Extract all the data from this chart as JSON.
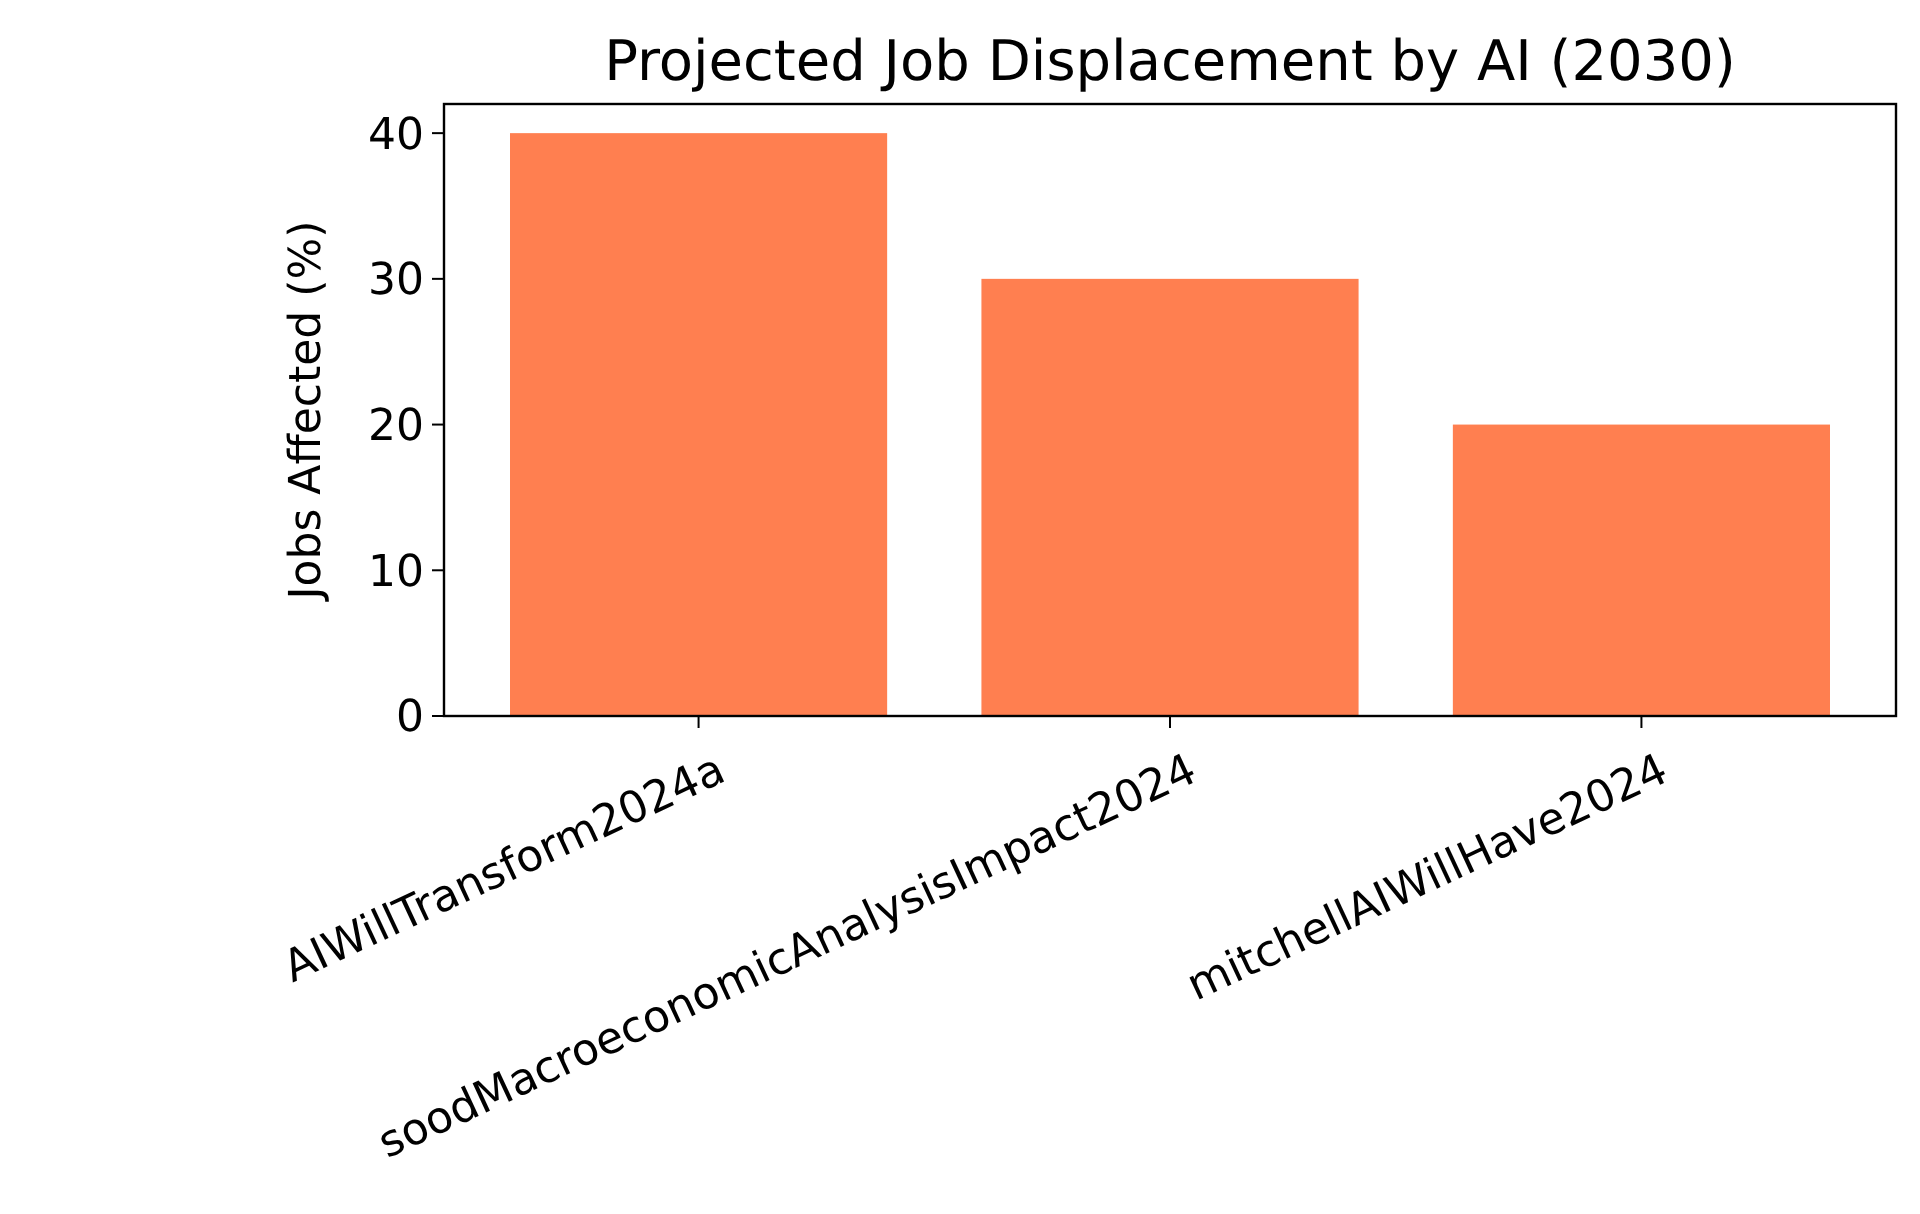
{
  "chart_data": {
    "type": "bar",
    "title": "Projected Job Displacement by AI (2030)",
    "ylabel": "Jobs Affected (%)",
    "categories": [
      "AIWillTransform2024a",
      "soodMacroeconomicAnalysisImpact2024",
      "mitchellAIWillHave2024"
    ],
    "values": [
      40,
      30,
      20
    ],
    "color": "#ff7f50",
    "ylim": [
      0,
      42
    ],
    "yticks": [
      0,
      10,
      20,
      30,
      40
    ],
    "grid": false
  }
}
